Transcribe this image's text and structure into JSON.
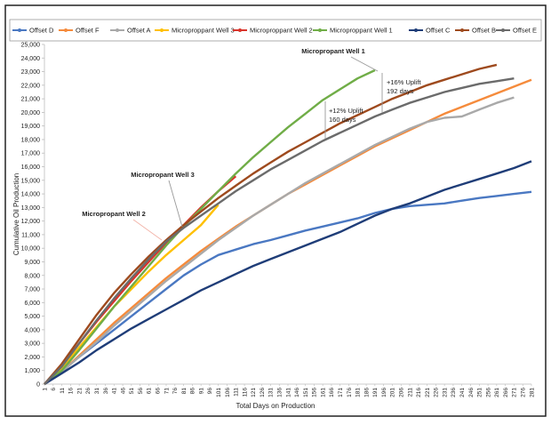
{
  "chart_data": {
    "type": "line",
    "xlabel": "Total Days on Production",
    "ylabel": "Cumulative Oil Production",
    "x": [
      1,
      11,
      21,
      31,
      41,
      51,
      61,
      71,
      81,
      91,
      101,
      111,
      121,
      131,
      141,
      151,
      161,
      171,
      181,
      191,
      201,
      211,
      221,
      231,
      241,
      251,
      261,
      271,
      281
    ],
    "xlim": [
      1,
      281
    ],
    "xticks": [
      1,
      6,
      11,
      16,
      21,
      26,
      31,
      36,
      41,
      46,
      51,
      56,
      61,
      66,
      71,
      76,
      81,
      86,
      91,
      96,
      101,
      106,
      111,
      116,
      121,
      126,
      131,
      136,
      141,
      146,
      151,
      156,
      161,
      166,
      171,
      176,
      181,
      186,
      191,
      196,
      201,
      206,
      211,
      216,
      221,
      226,
      231,
      236,
      241,
      246,
      251,
      256,
      261,
      266,
      271,
      276,
      281
    ],
    "ylim": [
      0,
      25000
    ],
    "yticks": [
      0,
      {
        "value": 1000,
        "label": "1,000"
      },
      {
        "value": 2000,
        "label": "2,000"
      },
      {
        "value": 3000,
        "label": "3,000"
      },
      {
        "value": 4000,
        "label": "4,000"
      },
      {
        "value": 5000,
        "label": "5,000"
      },
      {
        "value": 6000,
        "label": "6,000"
      },
      {
        "value": 7000,
        "label": "7,000"
      },
      {
        "value": 8000,
        "label": "8,000"
      },
      {
        "value": 9000,
        "label": "9,000"
      },
      {
        "value": 10000,
        "label": "10,000"
      },
      {
        "value": 11000,
        "label": "11,000"
      },
      {
        "value": 12000,
        "label": "12,000"
      },
      {
        "value": 13000,
        "label": "13,000"
      },
      {
        "value": 14000,
        "label": "14,000"
      },
      {
        "value": 15000,
        "label": "15,000"
      },
      {
        "value": 16000,
        "label": "16,000"
      },
      {
        "value": 17000,
        "label": "17,000"
      },
      {
        "value": 18000,
        "label": "18,000"
      },
      {
        "value": 19000,
        "label": "19,000"
      },
      {
        "value": 20000,
        "label": "20,000"
      },
      {
        "value": 21000,
        "label": "21,000"
      },
      {
        "value": 22000,
        "label": "22,000"
      },
      {
        "value": 23000,
        "label": "23,000"
      },
      {
        "value": 24000,
        "label": "24,000"
      },
      {
        "value": 25000,
        "label": "25,000"
      }
    ],
    "series": [
      {
        "name": "Offset D",
        "color": "#4a78c2",
        "values": [
          0,
          1000,
          2000,
          3000,
          4000,
          5000,
          6000,
          7000,
          8000,
          8800,
          9500,
          9900,
          10300,
          10600,
          10950,
          11300,
          11600,
          11900,
          12200,
          12600,
          12900,
          13100,
          13200,
          13300,
          13500,
          13700,
          13850,
          14000,
          14150
        ]
      },
      {
        "name": "Offset F",
        "color": "#f58b3c",
        "values": [
          0,
          900,
          2100,
          3300,
          4500,
          5600,
          6700,
          7800,
          8800,
          9800,
          10700,
          11600,
          12400,
          13200,
          14000,
          14700,
          15400,
          16100,
          16800,
          17500,
          18100,
          18700,
          19300,
          19900,
          20400,
          20900,
          21400,
          21900,
          22400
        ]
      },
      {
        "name": "Offset A",
        "color": "#a9a9a9",
        "values": [
          0,
          900,
          2000,
          3100,
          4300,
          5400,
          6500,
          7600,
          8600,
          9600,
          10600,
          11500,
          12400,
          13200,
          14000,
          14800,
          15500,
          16200,
          16900,
          17600,
          18200,
          18800,
          19300,
          19600,
          19700,
          20200,
          20700,
          21100,
          null
        ]
      },
      {
        "name": "Microproppant Well 3",
        "color": "#ffc000",
        "values": [
          0,
          1200,
          2700,
          4200,
          5700,
          7000,
          8300,
          9500,
          10600,
          11700,
          13200,
          null,
          null,
          null,
          null,
          null,
          null,
          null,
          null,
          null,
          null,
          null,
          null,
          null,
          null,
          null,
          null,
          null,
          null
        ]
      },
      {
        "name": "Microproppant Well 2",
        "color": "#d9342b",
        "values": [
          0,
          1400,
          3000,
          4600,
          6100,
          7600,
          9000,
          10400,
          11700,
          13000,
          14200,
          15300,
          null,
          null,
          null,
          null,
          null,
          null,
          null,
          null,
          null,
          null,
          null,
          null,
          null,
          null,
          null,
          null,
          null
        ]
      },
      {
        "name": "Microproppant Well 1",
        "color": "#70ad47",
        "values": [
          0,
          1000,
          2500,
          4100,
          5700,
          7200,
          8700,
          10200,
          11600,
          12900,
          14200,
          15500,
          16700,
          17800,
          18900,
          19900,
          20900,
          21700,
          22500,
          23100,
          null,
          null,
          null,
          null,
          null,
          null,
          null,
          null,
          null
        ]
      },
      {
        "name": "Offset C",
        "color": "#1f3d78",
        "values": [
          0,
          800,
          1600,
          2500,
          3300,
          4100,
          4800,
          5500,
          6200,
          6900,
          7500,
          8100,
          8700,
          9200,
          9700,
          10200,
          10700,
          11200,
          11800,
          12400,
          12900,
          13300,
          13800,
          14300,
          14700,
          15100,
          15500,
          15900,
          16400
        ]
      },
      {
        "name": "Offset B",
        "color": "#9e4a1e",
        "values": [
          0,
          1500,
          3300,
          5100,
          6700,
          8100,
          9400,
          10600,
          11700,
          12700,
          13700,
          14600,
          15500,
          16300,
          17100,
          17800,
          18500,
          19200,
          19800,
          20400,
          21000,
          21500,
          22000,
          22400,
          22800,
          23200,
          23500,
          null,
          null
        ]
      },
      {
        "name": "Offset E",
        "color": "#6b6b6b",
        "values": [
          0,
          1300,
          3000,
          4700,
          6300,
          7800,
          9200,
          10500,
          11500,
          12400,
          13300,
          14200,
          15000,
          15800,
          16500,
          17200,
          17900,
          18500,
          19100,
          19700,
          20200,
          20700,
          21100,
          21500,
          21800,
          22100,
          22300,
          22500,
          null
        ]
      }
    ],
    "annotations": [
      {
        "lines": [
          "Micropropant Well 1"
        ]
      },
      {
        "lines": [
          "Micropropant Well 3"
        ]
      },
      {
        "lines": [
          "Micropropant Well 2"
        ]
      },
      {
        "lines": [
          "+16% Uplift",
          "192 days"
        ]
      },
      {
        "lines": [
          "+12% Uplift",
          "160 days"
        ]
      }
    ]
  }
}
